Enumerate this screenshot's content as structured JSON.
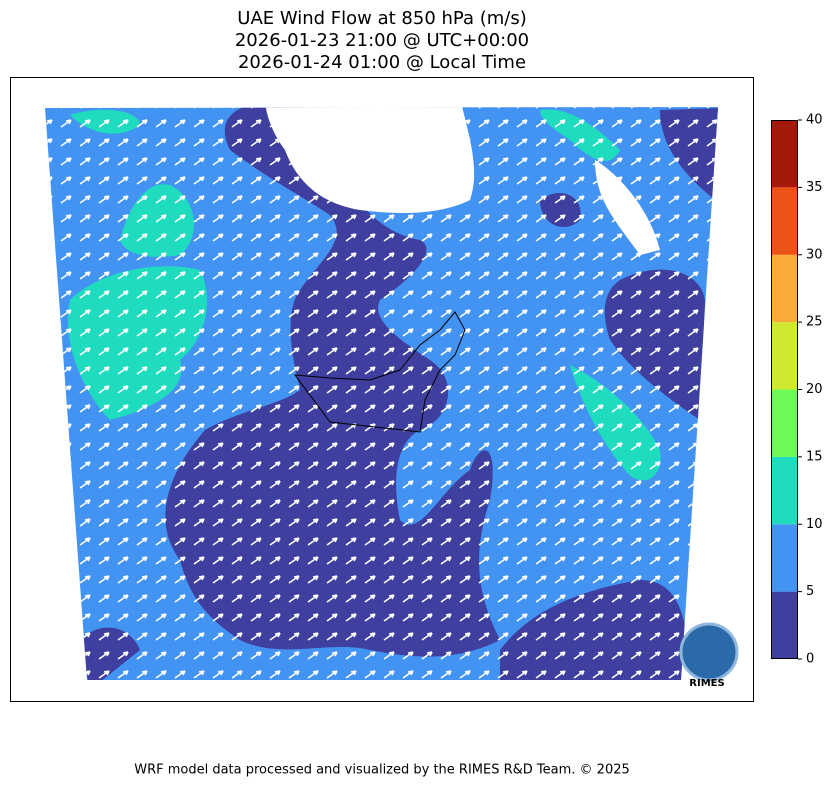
{
  "title": [
    "UAE Wind Flow at 850 hPa (m/s)",
    "2026-01-23 21:00 @ UTC+00:00",
    "2026-01-24 01:00 @ Local Time"
  ],
  "colorbar": {
    "lim": [
      0,
      40
    ],
    "ticks": [
      0,
      5,
      10,
      15,
      20,
      25,
      30,
      35,
      40
    ],
    "colors": [
      "#3f3f9f",
      "#4393f3",
      "#1fdcbf",
      "#6cfb58",
      "#cfe832",
      "#fbab38",
      "#ec5316",
      "#a5190b"
    ]
  },
  "logo": "RIMES",
  "footer": "WRF model data processed and visualized by the RIMES R&D Team. © 2025"
}
